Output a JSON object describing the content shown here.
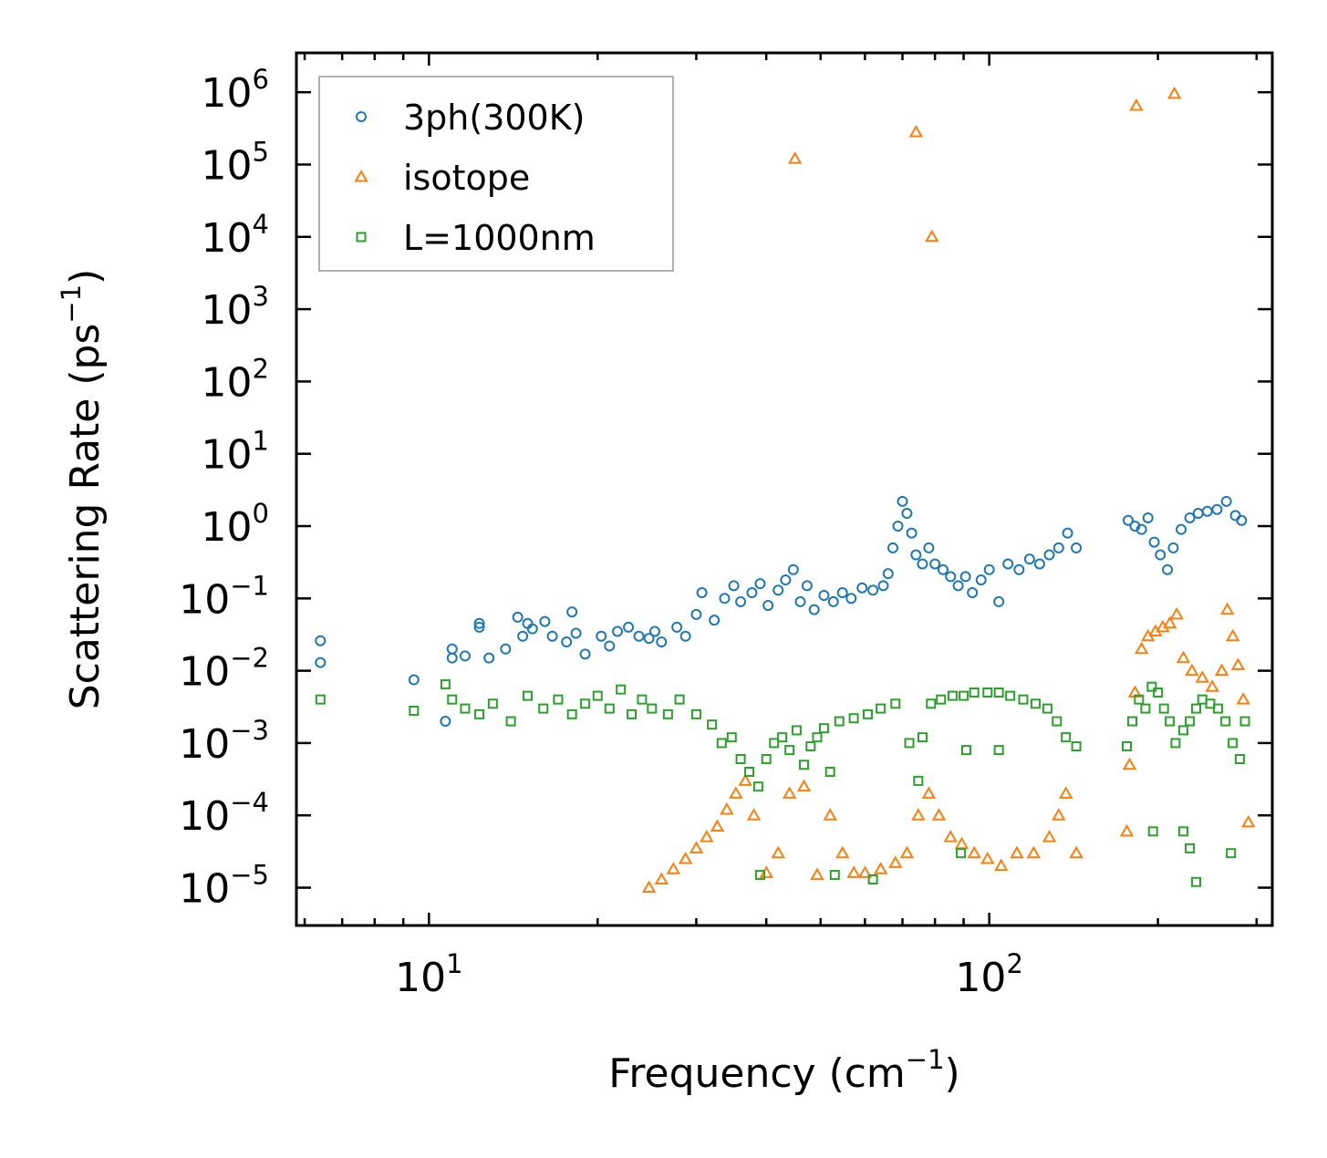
{
  "chart_data": {
    "type": "scatter",
    "title": "",
    "xlabel": "Frequency (cm",
    "xlabel_sup": "−1",
    "xlabel_end": ")",
    "ylabel": "Scattering Rate (ps",
    "ylabel_sup": "−1",
    "ylabel_end": ")",
    "xscale": "log",
    "yscale": "log",
    "xlim": [
      5.8,
      320
    ],
    "ylim": [
      3e-06,
      3500000.0
    ],
    "grid": false,
    "legend_position": "top-left",
    "x_ticks": [
      {
        "value": 10,
        "base": "10",
        "exp": "1"
      },
      {
        "value": 100,
        "base": "10",
        "exp": "2"
      }
    ],
    "y_ticks": [
      {
        "value": 1e-05,
        "base": "10",
        "exp": "−5"
      },
      {
        "value": 0.0001,
        "base": "10",
        "exp": "−4"
      },
      {
        "value": 0.001,
        "base": "10",
        "exp": "−3"
      },
      {
        "value": 0.01,
        "base": "10",
        "exp": "−2"
      },
      {
        "value": 0.1,
        "base": "10",
        "exp": "−1"
      },
      {
        "value": 1,
        "base": "10",
        "exp": "0"
      },
      {
        "value": 10,
        "base": "10",
        "exp": "1"
      },
      {
        "value": 100,
        "base": "10",
        "exp": "2"
      },
      {
        "value": 1000,
        "base": "10",
        "exp": "3"
      },
      {
        "value": 10000,
        "base": "10",
        "exp": "4"
      },
      {
        "value": 100000,
        "base": "10",
        "exp": "5"
      },
      {
        "value": 1000000,
        "base": "10",
        "exp": "6"
      }
    ],
    "series": [
      {
        "name": "3ph(300K)",
        "color": "#1f77b4",
        "marker": "circle",
        "points": [
          [
            6.4,
            0.026
          ],
          [
            6.4,
            0.013
          ],
          [
            9.4,
            0.0075
          ],
          [
            10.7,
            0.002
          ],
          [
            11.0,
            0.02
          ],
          [
            11.0,
            0.015
          ],
          [
            11.6,
            0.016
          ],
          [
            12.3,
            0.045
          ],
          [
            12.3,
            0.04
          ],
          [
            12.8,
            0.015
          ],
          [
            13.7,
            0.02
          ],
          [
            14.4,
            0.055
          ],
          [
            14.7,
            0.03
          ],
          [
            15.0,
            0.045
          ],
          [
            15.3,
            0.038
          ],
          [
            16.1,
            0.048
          ],
          [
            16.6,
            0.03
          ],
          [
            17.6,
            0.025
          ],
          [
            18.0,
            0.065
          ],
          [
            18.3,
            0.033
          ],
          [
            19.0,
            0.017
          ],
          [
            20.3,
            0.03
          ],
          [
            21.0,
            0.022
          ],
          [
            21.7,
            0.035
          ],
          [
            22.7,
            0.04
          ],
          [
            23.7,
            0.03
          ],
          [
            24.7,
            0.028
          ],
          [
            25.3,
            0.035
          ],
          [
            26.0,
            0.025
          ],
          [
            27.7,
            0.04
          ],
          [
            28.7,
            0.03
          ],
          [
            30.0,
            0.06
          ],
          [
            30.7,
            0.12
          ],
          [
            32.3,
            0.05
          ],
          [
            33.7,
            0.1
          ],
          [
            35.0,
            0.15
          ],
          [
            36.0,
            0.09
          ],
          [
            37.7,
            0.12
          ],
          [
            39.0,
            0.16
          ],
          [
            40.3,
            0.08
          ],
          [
            42.0,
            0.13
          ],
          [
            43.3,
            0.18
          ],
          [
            44.7,
            0.25
          ],
          [
            46.0,
            0.09
          ],
          [
            47.3,
            0.15
          ],
          [
            48.7,
            0.07
          ],
          [
            50.7,
            0.11
          ],
          [
            52.7,
            0.09
          ],
          [
            54.7,
            0.12
          ],
          [
            56.7,
            0.1
          ],
          [
            59.3,
            0.14
          ],
          [
            62.0,
            0.13
          ],
          [
            64.7,
            0.15
          ],
          [
            66.0,
            0.22
          ],
          [
            67.3,
            0.5
          ],
          [
            68.7,
            1.0
          ],
          [
            70.0,
            2.2
          ],
          [
            71.3,
            1.5
          ],
          [
            72.7,
            0.8
          ],
          [
            74.0,
            0.4
          ],
          [
            76.0,
            0.3
          ],
          [
            78.0,
            0.5
          ],
          [
            80.0,
            0.3
          ],
          [
            82.7,
            0.25
          ],
          [
            85.3,
            0.2
          ],
          [
            88.0,
            0.15
          ],
          [
            90.7,
            0.2
          ],
          [
            93.3,
            0.12
          ],
          [
            96.7,
            0.18
          ],
          [
            100.0,
            0.25
          ],
          [
            104.0,
            0.09
          ],
          [
            108.0,
            0.3
          ],
          [
            113.0,
            0.25
          ],
          [
            118.0,
            0.35
          ],
          [
            123.0,
            0.3
          ],
          [
            128.0,
            0.4
          ],
          [
            133.0,
            0.5
          ],
          [
            138.0,
            0.8
          ],
          [
            143.0,
            0.5
          ],
          [
            177.0,
            1.2
          ],
          [
            182.0,
            1.0
          ],
          [
            187.0,
            0.9
          ],
          [
            192.0,
            1.3
          ],
          [
            197.0,
            0.6
          ],
          [
            202.0,
            0.4
          ],
          [
            208.0,
            0.25
          ],
          [
            213.0,
            0.5
          ],
          [
            220.0,
            0.9
          ],
          [
            228.0,
            1.3
          ],
          [
            236.0,
            1.5
          ],
          [
            245.0,
            1.6
          ],
          [
            255.0,
            1.7
          ],
          [
            265.0,
            2.2
          ],
          [
            275.0,
            1.4
          ],
          [
            282.0,
            1.2
          ]
        ]
      },
      {
        "name": "isotope",
        "color": "#ff7f0e",
        "marker": "triangle",
        "points": [
          [
            45.0,
            120000
          ],
          [
            74.0,
            280000
          ],
          [
            79.0,
            10000
          ],
          [
            183.0,
            650000
          ],
          [
            214.0,
            950000
          ],
          [
            24.7,
            1e-05
          ],
          [
            26.0,
            1.3e-05
          ],
          [
            27.3,
            1.8e-05
          ],
          [
            28.7,
            2.5e-05
          ],
          [
            30.0,
            3.5e-05
          ],
          [
            31.3,
            5e-05
          ],
          [
            32.7,
            7e-05
          ],
          [
            34.0,
            0.00012
          ],
          [
            35.3,
            0.0002
          ],
          [
            36.7,
            0.0003
          ],
          [
            38.0,
            0.0001
          ],
          [
            40.0,
            1.6e-05
          ],
          [
            42.0,
            3e-05
          ],
          [
            44.0,
            0.0002
          ],
          [
            46.7,
            0.00025
          ],
          [
            49.3,
            1.5e-05
          ],
          [
            52.0,
            0.0001
          ],
          [
            54.7,
            3e-05
          ],
          [
            57.3,
            1.6e-05
          ],
          [
            60.0,
            1.6e-05
          ],
          [
            64.0,
            1.8e-05
          ],
          [
            68.0,
            2.2e-05
          ],
          [
            71.3,
            3e-05
          ],
          [
            74.7,
            0.0001
          ],
          [
            78.0,
            0.0002
          ],
          [
            81.3,
            0.0001
          ],
          [
            85.3,
            5e-05
          ],
          [
            89.3,
            4e-05
          ],
          [
            94.0,
            3e-05
          ],
          [
            99.3,
            2.5e-05
          ],
          [
            105.0,
            2e-05
          ],
          [
            112.0,
            3e-05
          ],
          [
            120.0,
            3e-05
          ],
          [
            128.0,
            5e-05
          ],
          [
            133.0,
            0.0001
          ],
          [
            137.0,
            0.0002
          ],
          [
            143.0,
            3e-05
          ],
          [
            176.0,
            6e-05
          ],
          [
            178.0,
            0.0005
          ],
          [
            182.0,
            0.005
          ],
          [
            187.0,
            0.02
          ],
          [
            192.0,
            0.03
          ],
          [
            198.0,
            0.035
          ],
          [
            204.0,
            0.04
          ],
          [
            210.0,
            0.045
          ],
          [
            216.0,
            0.06
          ],
          [
            222.0,
            0.015
          ],
          [
            230.0,
            0.01
          ],
          [
            240.0,
            0.008
          ],
          [
            250.0,
            0.006
          ],
          [
            260.0,
            0.01
          ],
          [
            266.0,
            0.07
          ],
          [
            272.0,
            0.03
          ],
          [
            278.0,
            0.012
          ],
          [
            284.0,
            0.004
          ],
          [
            290.0,
            8e-05
          ]
        ]
      },
      {
        "name": "L=1000nm",
        "color": "#2ca02c",
        "marker": "square",
        "points": [
          [
            6.4,
            0.004
          ],
          [
            9.4,
            0.0028
          ],
          [
            10.7,
            0.0065
          ],
          [
            11.0,
            0.004
          ],
          [
            11.6,
            0.003
          ],
          [
            12.3,
            0.0025
          ],
          [
            13.0,
            0.0035
          ],
          [
            14.0,
            0.002
          ],
          [
            15.0,
            0.0045
          ],
          [
            16.0,
            0.003
          ],
          [
            17.0,
            0.004
          ],
          [
            18.0,
            0.0025
          ],
          [
            19.0,
            0.0035
          ],
          [
            20.0,
            0.0045
          ],
          [
            21.0,
            0.003
          ],
          [
            22.0,
            0.0055
          ],
          [
            23.0,
            0.0025
          ],
          [
            24.0,
            0.004
          ],
          [
            25.0,
            0.003
          ],
          [
            26.7,
            0.0025
          ],
          [
            28.0,
            0.004
          ],
          [
            30.0,
            0.0025
          ],
          [
            32.0,
            0.0018
          ],
          [
            33.3,
            0.001
          ],
          [
            34.7,
            0.0012
          ],
          [
            36.0,
            0.0006
          ],
          [
            37.3,
            0.0004
          ],
          [
            38.7,
            0.00025
          ],
          [
            40.0,
            0.0006
          ],
          [
            41.3,
            0.001
          ],
          [
            42.7,
            0.0012
          ],
          [
            44.0,
            0.0008
          ],
          [
            45.3,
            0.0015
          ],
          [
            46.7,
            0.0005
          ],
          [
            48.0,
            0.0009
          ],
          [
            49.3,
            0.0012
          ],
          [
            50.7,
            0.0016
          ],
          [
            52.0,
            0.0004
          ],
          [
            54.0,
            0.002
          ],
          [
            57.3,
            0.0022
          ],
          [
            60.7,
            0.0025
          ],
          [
            64.0,
            0.003
          ],
          [
            68.0,
            0.0035
          ],
          [
            72.0,
            0.001
          ],
          [
            74.7,
            0.0003
          ],
          [
            76.0,
            0.0012
          ],
          [
            78.7,
            0.0035
          ],
          [
            82.0,
            0.004
          ],
          [
            86.0,
            0.0045
          ],
          [
            90.0,
            0.0045
          ],
          [
            94.0,
            0.005
          ],
          [
            99.3,
            0.005
          ],
          [
            104.0,
            0.005
          ],
          [
            109.0,
            0.0045
          ],
          [
            115.0,
            0.004
          ],
          [
            121.0,
            0.0035
          ],
          [
            127.0,
            0.003
          ],
          [
            132.0,
            0.002
          ],
          [
            137.0,
            0.0012
          ],
          [
            143.0,
            0.0009
          ],
          [
            176.0,
            0.0009
          ],
          [
            180.0,
            0.002
          ],
          [
            185.0,
            0.004
          ],
          [
            190.0,
            0.003
          ],
          [
            195.0,
            0.006
          ],
          [
            200.0,
            0.005
          ],
          [
            205.0,
            0.003
          ],
          [
            210.0,
            0.002
          ],
          [
            215.0,
            0.001
          ],
          [
            222.0,
            0.0015
          ],
          [
            228.0,
            0.002
          ],
          [
            234.0,
            0.003
          ],
          [
            240.0,
            0.004
          ],
          [
            248.0,
            0.0035
          ],
          [
            256.0,
            0.003
          ],
          [
            264.0,
            0.002
          ],
          [
            272.0,
            0.001
          ],
          [
            280.0,
            0.0006
          ],
          [
            286.0,
            0.002
          ],
          [
            234.0,
            1.2e-05
          ],
          [
            222.0,
            6e-05
          ],
          [
            196.0,
            6e-05
          ],
          [
            228.0,
            3.5e-05
          ],
          [
            270.0,
            3e-05
          ],
          [
            62.0,
            1.3e-05
          ],
          [
            53.0,
            1.5e-05
          ],
          [
            39.0,
            1.5e-05
          ],
          [
            91.0,
            0.0008
          ],
          [
            104.0,
            0.0008
          ],
          [
            89.0,
            3e-05
          ]
        ]
      }
    ]
  }
}
